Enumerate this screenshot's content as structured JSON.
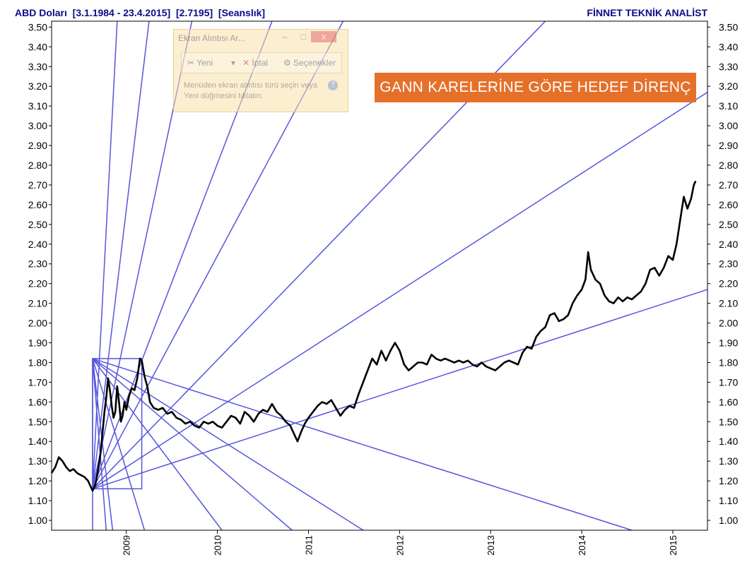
{
  "header": {
    "title": "ABD Doları  [3.1.1984 - 23.4.2015]  [2.7195]  [Seanslık]",
    "source": "FİNNET TEKNİK ANALİST"
  },
  "annotation": {
    "text": "GANN KARELERİNE GÖRE HEDEF DİRENÇ",
    "color": "#e5702a"
  },
  "snipping_tool": {
    "title": "Ekran Alıntısı Ar...",
    "minimize": "–",
    "maximize": "□",
    "close": "x",
    "new_label": "Yeni",
    "cancel_label": "İptal",
    "options_label": "Seçenekler",
    "help_text": "Menüden ekran alıntısı türü seçin veya Yeni düğmesini tıklatın.",
    "help_icon": "?"
  },
  "chart_data": {
    "type": "line",
    "colors": {
      "price": "#000000",
      "gann": "#5555dd",
      "header": "#0b0b8a"
    },
    "y_ticks": [
      "1.00",
      "1.10",
      "1.20",
      "1.30",
      "1.40",
      "1.50",
      "1.60",
      "1.70",
      "1.80",
      "1.90",
      "2.00",
      "2.10",
      "2.20",
      "2.30",
      "2.40",
      "2.50",
      "2.60",
      "2.70",
      "2.80",
      "2.90",
      "3.00",
      "3.10",
      "3.20",
      "3.30",
      "3.40",
      "3.50"
    ],
    "ylim": [
      0.95,
      3.53
    ],
    "xlim": [
      2008.18,
      2015.38
    ],
    "x_ticks": [
      {
        "label": "2009",
        "value": 2009.0
      },
      {
        "label": "2010",
        "value": 2010.0
      },
      {
        "label": "2011",
        "value": 2011.0
      },
      {
        "label": "2012",
        "value": 2012.0
      },
      {
        "label": "2013",
        "value": 2013.0
      },
      {
        "label": "2014",
        "value": 2014.0
      },
      {
        "label": "2015",
        "value": 2015.0
      }
    ],
    "series": [
      {
        "points": [
          [
            2008.18,
            1.24
          ],
          [
            2008.22,
            1.27
          ],
          [
            2008.26,
            1.32
          ],
          [
            2008.3,
            1.3
          ],
          [
            2008.34,
            1.27
          ],
          [
            2008.38,
            1.25
          ],
          [
            2008.42,
            1.26
          ],
          [
            2008.46,
            1.24
          ],
          [
            2008.5,
            1.23
          ],
          [
            2008.54,
            1.22
          ],
          [
            2008.58,
            1.2
          ],
          [
            2008.61,
            1.17
          ],
          [
            2008.63,
            1.15
          ],
          [
            2008.66,
            1.18
          ],
          [
            2008.68,
            1.23
          ],
          [
            2008.7,
            1.28
          ],
          [
            2008.72,
            1.35
          ],
          [
            2008.74,
            1.45
          ],
          [
            2008.76,
            1.55
          ],
          [
            2008.78,
            1.62
          ],
          [
            2008.8,
            1.72
          ],
          [
            2008.82,
            1.66
          ],
          [
            2008.84,
            1.58
          ],
          [
            2008.86,
            1.52
          ],
          [
            2008.88,
            1.55
          ],
          [
            2008.9,
            1.68
          ],
          [
            2008.92,
            1.6
          ],
          [
            2008.94,
            1.5
          ],
          [
            2008.96,
            1.53
          ],
          [
            2008.98,
            1.6
          ],
          [
            2009.0,
            1.56
          ],
          [
            2009.03,
            1.63
          ],
          [
            2009.06,
            1.67
          ],
          [
            2009.09,
            1.66
          ],
          [
            2009.12,
            1.72
          ],
          [
            2009.15,
            1.82
          ],
          [
            2009.17,
            1.81
          ],
          [
            2009.2,
            1.73
          ],
          [
            2009.23,
            1.68
          ],
          [
            2009.26,
            1.6
          ],
          [
            2009.3,
            1.57
          ],
          [
            2009.35,
            1.56
          ],
          [
            2009.4,
            1.57
          ],
          [
            2009.45,
            1.54
          ],
          [
            2009.5,
            1.55
          ],
          [
            2009.55,
            1.52
          ],
          [
            2009.6,
            1.51
          ],
          [
            2009.65,
            1.49
          ],
          [
            2009.7,
            1.5
          ],
          [
            2009.75,
            1.48
          ],
          [
            2009.8,
            1.47
          ],
          [
            2009.85,
            1.5
          ],
          [
            2009.9,
            1.49
          ],
          [
            2009.95,
            1.5
          ],
          [
            2010.0,
            1.48
          ],
          [
            2010.05,
            1.47
          ],
          [
            2010.1,
            1.5
          ],
          [
            2010.15,
            1.53
          ],
          [
            2010.2,
            1.52
          ],
          [
            2010.25,
            1.49
          ],
          [
            2010.3,
            1.55
          ],
          [
            2010.35,
            1.53
          ],
          [
            2010.4,
            1.5
          ],
          [
            2010.45,
            1.54
          ],
          [
            2010.5,
            1.56
          ],
          [
            2010.55,
            1.55
          ],
          [
            2010.6,
            1.59
          ],
          [
            2010.65,
            1.55
          ],
          [
            2010.7,
            1.53
          ],
          [
            2010.75,
            1.5
          ],
          [
            2010.8,
            1.48
          ],
          [
            2010.85,
            1.43
          ],
          [
            2010.88,
            1.4
          ],
          [
            2010.92,
            1.45
          ],
          [
            2010.96,
            1.49
          ],
          [
            2011.0,
            1.52
          ],
          [
            2011.05,
            1.55
          ],
          [
            2011.1,
            1.58
          ],
          [
            2011.15,
            1.6
          ],
          [
            2011.2,
            1.59
          ],
          [
            2011.25,
            1.61
          ],
          [
            2011.3,
            1.57
          ],
          [
            2011.35,
            1.53
          ],
          [
            2011.4,
            1.56
          ],
          [
            2011.45,
            1.58
          ],
          [
            2011.5,
            1.57
          ],
          [
            2011.55,
            1.64
          ],
          [
            2011.6,
            1.7
          ],
          [
            2011.65,
            1.76
          ],
          [
            2011.7,
            1.82
          ],
          [
            2011.75,
            1.79
          ],
          [
            2011.8,
            1.86
          ],
          [
            2011.85,
            1.81
          ],
          [
            2011.9,
            1.86
          ],
          [
            2011.95,
            1.9
          ],
          [
            2012.0,
            1.86
          ],
          [
            2012.05,
            1.79
          ],
          [
            2012.1,
            1.76
          ],
          [
            2012.15,
            1.78
          ],
          [
            2012.2,
            1.8
          ],
          [
            2012.25,
            1.8
          ],
          [
            2012.3,
            1.79
          ],
          [
            2012.35,
            1.84
          ],
          [
            2012.4,
            1.82
          ],
          [
            2012.45,
            1.81
          ],
          [
            2012.5,
            1.82
          ],
          [
            2012.55,
            1.81
          ],
          [
            2012.6,
            1.8
          ],
          [
            2012.65,
            1.81
          ],
          [
            2012.7,
            1.8
          ],
          [
            2012.75,
            1.81
          ],
          [
            2012.8,
            1.79
          ],
          [
            2012.85,
            1.78
          ],
          [
            2012.9,
            1.8
          ],
          [
            2012.95,
            1.78
          ],
          [
            2013.0,
            1.77
          ],
          [
            2013.05,
            1.76
          ],
          [
            2013.1,
            1.78
          ],
          [
            2013.15,
            1.8
          ],
          [
            2013.2,
            1.81
          ],
          [
            2013.25,
            1.8
          ],
          [
            2013.3,
            1.79
          ],
          [
            2013.35,
            1.85
          ],
          [
            2013.4,
            1.88
          ],
          [
            2013.45,
            1.87
          ],
          [
            2013.5,
            1.93
          ],
          [
            2013.55,
            1.96
          ],
          [
            2013.6,
            1.98
          ],
          [
            2013.65,
            2.04
          ],
          [
            2013.7,
            2.05
          ],
          [
            2013.75,
            2.01
          ],
          [
            2013.8,
            2.02
          ],
          [
            2013.85,
            2.04
          ],
          [
            2013.9,
            2.1
          ],
          [
            2013.95,
            2.14
          ],
          [
            2014.0,
            2.17
          ],
          [
            2014.04,
            2.22
          ],
          [
            2014.07,
            2.36
          ],
          [
            2014.1,
            2.27
          ],
          [
            2014.15,
            2.22
          ],
          [
            2014.2,
            2.2
          ],
          [
            2014.25,
            2.14
          ],
          [
            2014.3,
            2.11
          ],
          [
            2014.35,
            2.1
          ],
          [
            2014.4,
            2.13
          ],
          [
            2014.45,
            2.11
          ],
          [
            2014.5,
            2.13
          ],
          [
            2014.55,
            2.12
          ],
          [
            2014.6,
            2.14
          ],
          [
            2014.65,
            2.16
          ],
          [
            2014.7,
            2.2
          ],
          [
            2014.75,
            2.27
          ],
          [
            2014.8,
            2.28
          ],
          [
            2014.85,
            2.24
          ],
          [
            2014.9,
            2.28
          ],
          [
            2014.95,
            2.34
          ],
          [
            2015.0,
            2.32
          ],
          [
            2015.04,
            2.4
          ],
          [
            2015.08,
            2.52
          ],
          [
            2015.12,
            2.64
          ],
          [
            2015.16,
            2.58
          ],
          [
            2015.2,
            2.63
          ],
          [
            2015.23,
            2.7
          ],
          [
            2015.25,
            2.72
          ]
        ]
      }
    ],
    "gann": {
      "boxes": [
        {
          "x0": 2008.63,
          "x1": 2009.17,
          "y0": 1.16,
          "y1": 1.82
        }
      ],
      "rays_from_low": [
        [
          2008.9,
          3.53
        ],
        [
          2009.25,
          3.53
        ],
        [
          2009.72,
          3.53
        ],
        [
          2010.6,
          3.53
        ],
        [
          2011.38,
          3.53
        ],
        [
          2013.6,
          3.53
        ],
        [
          2015.38,
          3.17
        ],
        [
          2015.38,
          2.17
        ]
      ],
      "rays_from_high": [
        [
          2008.63,
          0.95
        ],
        [
          2008.78,
          0.95
        ],
        [
          2008.85,
          0.95
        ],
        [
          2009.2,
          0.95
        ],
        [
          2010.05,
          0.95
        ],
        [
          2010.82,
          0.95
        ],
        [
          2011.6,
          0.95
        ],
        [
          2014.55,
          0.95
        ]
      ],
      "fan_low_apex": [
        2008.63,
        1.16
      ],
      "fan_high_apex": [
        2008.63,
        1.82
      ]
    }
  }
}
